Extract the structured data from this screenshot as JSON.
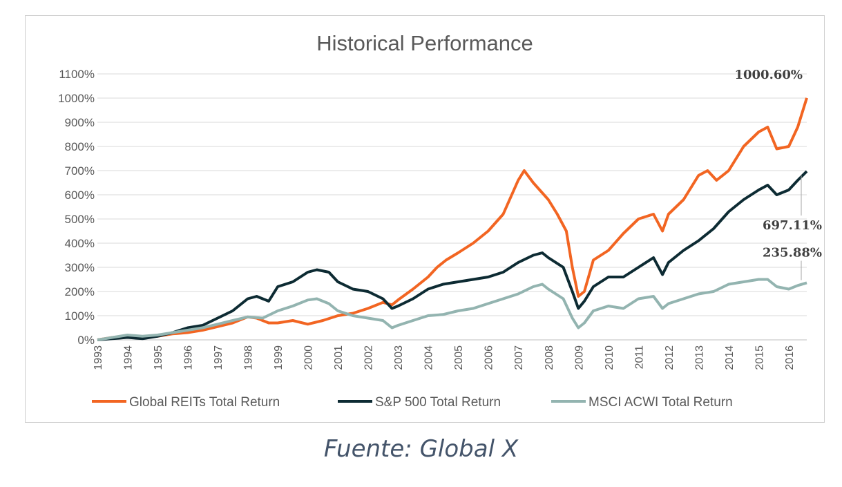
{
  "source": "Fuente: Global X",
  "chart_data": {
    "type": "line",
    "title": "Historical Performance",
    "xlabel": "",
    "ylabel": "",
    "x_ticks": [
      "1993",
      "1994",
      "1995",
      "1996",
      "1997",
      "1998",
      "1999",
      "2000",
      "2001",
      "2002",
      "2003",
      "2004",
      "2005",
      "2006",
      "2007",
      "2008",
      "2009",
      "2010",
      "2011",
      "2012",
      "2013",
      "2014",
      "2015",
      "2016"
    ],
    "y_ticks": [
      "0%",
      "100%",
      "200%",
      "300%",
      "400%",
      "500%",
      "600%",
      "700%",
      "800%",
      "900%",
      "1000%",
      "1100%"
    ],
    "ylim": [
      0,
      1100
    ],
    "xlim": [
      1993,
      2016.6
    ],
    "grid": "horizontal",
    "legend_position": "bottom",
    "series": [
      {
        "name": "Global REITs Total Return",
        "color": "#f26522",
        "points": [
          [
            1993,
            0
          ],
          [
            1993.5,
            10
          ],
          [
            1994,
            15
          ],
          [
            1994.5,
            10
          ],
          [
            1995,
            15
          ],
          [
            1995.5,
            25
          ],
          [
            1996,
            30
          ],
          [
            1996.5,
            40
          ],
          [
            1997,
            55
          ],
          [
            1997.5,
            70
          ],
          [
            1998,
            95
          ],
          [
            1998.3,
            90
          ],
          [
            1998.7,
            70
          ],
          [
            1999,
            70
          ],
          [
            1999.5,
            80
          ],
          [
            2000,
            65
          ],
          [
            2000.5,
            80
          ],
          [
            2001,
            100
          ],
          [
            2001.5,
            110
          ],
          [
            2002,
            130
          ],
          [
            2002.5,
            155
          ],
          [
            2002.8,
            145
          ],
          [
            2003,
            165
          ],
          [
            2003.5,
            210
          ],
          [
            2004,
            260
          ],
          [
            2004.3,
            300
          ],
          [
            2004.6,
            330
          ],
          [
            2005,
            360
          ],
          [
            2005.5,
            400
          ],
          [
            2006,
            450
          ],
          [
            2006.5,
            520
          ],
          [
            2007,
            660
          ],
          [
            2007.2,
            700
          ],
          [
            2007.5,
            650
          ],
          [
            2008,
            580
          ],
          [
            2008.3,
            520
          ],
          [
            2008.6,
            450
          ],
          [
            2008.8,
            300
          ],
          [
            2009,
            180
          ],
          [
            2009.2,
            200
          ],
          [
            2009.5,
            330
          ],
          [
            2010,
            370
          ],
          [
            2010.5,
            440
          ],
          [
            2011,
            500
          ],
          [
            2011.5,
            520
          ],
          [
            2011.8,
            450
          ],
          [
            2012,
            520
          ],
          [
            2012.5,
            580
          ],
          [
            2013,
            680
          ],
          [
            2013.3,
            700
          ],
          [
            2013.6,
            660
          ],
          [
            2014,
            700
          ],
          [
            2014.5,
            800
          ],
          [
            2015,
            860
          ],
          [
            2015.3,
            880
          ],
          [
            2015.6,
            790
          ],
          [
            2016,
            800
          ],
          [
            2016.3,
            880
          ],
          [
            2016.6,
            1000.6
          ]
        ]
      },
      {
        "name": "S&P 500 Total Return",
        "color": "#0d2b33",
        "points": [
          [
            1993,
            0
          ],
          [
            1993.5,
            5
          ],
          [
            1994,
            10
          ],
          [
            1994.5,
            5
          ],
          [
            1995,
            15
          ],
          [
            1995.5,
            30
          ],
          [
            1996,
            50
          ],
          [
            1996.5,
            60
          ],
          [
            1997,
            90
          ],
          [
            1997.5,
            120
          ],
          [
            1998,
            170
          ],
          [
            1998.3,
            180
          ],
          [
            1998.7,
            160
          ],
          [
            1999,
            220
          ],
          [
            1999.5,
            240
          ],
          [
            2000,
            280
          ],
          [
            2000.3,
            290
          ],
          [
            2000.7,
            280
          ],
          [
            2001,
            240
          ],
          [
            2001.5,
            210
          ],
          [
            2002,
            200
          ],
          [
            2002.5,
            170
          ],
          [
            2002.8,
            130
          ],
          [
            2003,
            140
          ],
          [
            2003.5,
            170
          ],
          [
            2004,
            210
          ],
          [
            2004.5,
            230
          ],
          [
            2005,
            240
          ],
          [
            2005.5,
            250
          ],
          [
            2006,
            260
          ],
          [
            2006.5,
            280
          ],
          [
            2007,
            320
          ],
          [
            2007.5,
            350
          ],
          [
            2007.8,
            360
          ],
          [
            2008,
            340
          ],
          [
            2008.5,
            300
          ],
          [
            2008.8,
            200
          ],
          [
            2009,
            130
          ],
          [
            2009.2,
            160
          ],
          [
            2009.5,
            220
          ],
          [
            2010,
            260
          ],
          [
            2010.5,
            260
          ],
          [
            2011,
            300
          ],
          [
            2011.5,
            340
          ],
          [
            2011.8,
            270
          ],
          [
            2012,
            320
          ],
          [
            2012.5,
            370
          ],
          [
            2013,
            410
          ],
          [
            2013.5,
            460
          ],
          [
            2014,
            530
          ],
          [
            2014.5,
            580
          ],
          [
            2015,
            620
          ],
          [
            2015.3,
            640
          ],
          [
            2015.6,
            600
          ],
          [
            2016,
            620
          ],
          [
            2016.3,
            660
          ],
          [
            2016.6,
            697.11
          ]
        ]
      },
      {
        "name": "MSCI ACWI Total Return",
        "color": "#93b4b0",
        "points": [
          [
            1993,
            0
          ],
          [
            1993.5,
            10
          ],
          [
            1994,
            20
          ],
          [
            1994.5,
            15
          ],
          [
            1995,
            20
          ],
          [
            1995.5,
            30
          ],
          [
            1996,
            40
          ],
          [
            1996.5,
            50
          ],
          [
            1997,
            65
          ],
          [
            1997.5,
            80
          ],
          [
            1998,
            95
          ],
          [
            1998.5,
            90
          ],
          [
            1999,
            120
          ],
          [
            1999.5,
            140
          ],
          [
            2000,
            165
          ],
          [
            2000.3,
            170
          ],
          [
            2000.7,
            150
          ],
          [
            2001,
            120
          ],
          [
            2001.5,
            100
          ],
          [
            2002,
            90
          ],
          [
            2002.5,
            80
          ],
          [
            2002.8,
            50
          ],
          [
            2003,
            60
          ],
          [
            2003.5,
            80
          ],
          [
            2004,
            100
          ],
          [
            2004.5,
            105
          ],
          [
            2005,
            120
          ],
          [
            2005.5,
            130
          ],
          [
            2006,
            150
          ],
          [
            2006.5,
            170
          ],
          [
            2007,
            190
          ],
          [
            2007.5,
            220
          ],
          [
            2007.8,
            230
          ],
          [
            2008,
            210
          ],
          [
            2008.5,
            170
          ],
          [
            2008.8,
            90
          ],
          [
            2009,
            50
          ],
          [
            2009.2,
            70
          ],
          [
            2009.5,
            120
          ],
          [
            2010,
            140
          ],
          [
            2010.5,
            130
          ],
          [
            2011,
            170
          ],
          [
            2011.5,
            180
          ],
          [
            2011.8,
            130
          ],
          [
            2012,
            150
          ],
          [
            2012.5,
            170
          ],
          [
            2013,
            190
          ],
          [
            2013.5,
            200
          ],
          [
            2014,
            230
          ],
          [
            2014.5,
            240
          ],
          [
            2015,
            250
          ],
          [
            2015.3,
            250
          ],
          [
            2015.6,
            220
          ],
          [
            2016,
            210
          ],
          [
            2016.3,
            225
          ],
          [
            2016.6,
            235.88
          ]
        ]
      }
    ],
    "annotations": [
      {
        "text": "1000.60%",
        "series": 0
      },
      {
        "text": "697.11%",
        "series": 1
      },
      {
        "text": "235.88%",
        "series": 2
      }
    ]
  }
}
